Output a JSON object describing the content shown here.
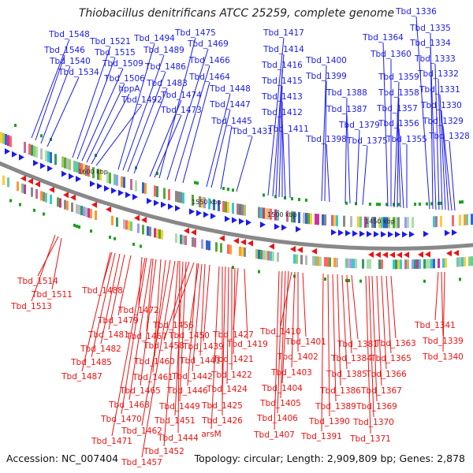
{
  "title": "Thiobacillus denitrificans ATCC 25259, complete genome",
  "footer": {
    "accession": "Accession: NC_007404",
    "summary": "Topology: circular; Length: 2,909,809 bp; Genes: 2,878"
  },
  "colors": {
    "forward": "#1a1aee",
    "reverse": "#ee1111",
    "backbone": "#888888",
    "gc_green": "#1aa31a"
  },
  "ticks": [
    "1600 kbp",
    "1550 kbp",
    "1500 kbp",
    "1450 kbp"
  ],
  "forward_genes": [
    {
      "name": "Tbd_1548",
      "ax": 40,
      "ay": 175
    },
    {
      "name": "Tbd_1546",
      "ax": 45,
      "ay": 178
    },
    {
      "name": "Tbd_1540",
      "ax": 52,
      "ay": 182
    },
    {
      "name": "Tbd_1534",
      "ax": 60,
      "ay": 186
    },
    {
      "name": "Tbd_1521",
      "ax": 92,
      "ay": 200
    },
    {
      "name": "Tbd_1515",
      "ax": 98,
      "ay": 202
    },
    {
      "name": "Tbd_1509",
      "ax": 104,
      "ay": 204
    },
    {
      "name": "Tbd_1506",
      "ax": 110,
      "ay": 206
    },
    {
      "name": "hppA",
      "ax": 116,
      "ay": 208
    },
    {
      "name": "Tbd_1492",
      "ax": 122,
      "ay": 210
    },
    {
      "name": "Tbd_1494",
      "ax": 150,
      "ay": 215
    },
    {
      "name": "Tbd_1489",
      "ax": 156,
      "ay": 216
    },
    {
      "name": "Tbd_1486",
      "ax": 162,
      "ay": 218
    },
    {
      "name": "Tbd_1483",
      "ax": 170,
      "ay": 220
    },
    {
      "name": "Tbd_1474",
      "ax": 190,
      "ay": 224
    },
    {
      "name": "Tbd_1473",
      "ax": 196,
      "ay": 225
    },
    {
      "name": "Tbd_1475",
      "ax": 202,
      "ay": 226
    },
    {
      "name": "Tbd_1469",
      "ax": 212,
      "ay": 228
    },
    {
      "name": "Tbd_1466",
      "ax": 222,
      "ay": 230
    },
    {
      "name": "Tbd_1464",
      "ax": 232,
      "ay": 232
    },
    {
      "name": "Tbd_1448",
      "ax": 262,
      "ay": 237
    },
    {
      "name": "Tbd_1447",
      "ax": 268,
      "ay": 238
    },
    {
      "name": "Tbd_1445",
      "ax": 280,
      "ay": 240
    },
    {
      "name": "Tbd_1431",
      "ax": 300,
      "ay": 243
    },
    {
      "name": "Tbd_1417",
      "ax": 340,
      "ay": 248
    },
    {
      "name": "Tbd_1414",
      "ax": 346,
      "ay": 249
    },
    {
      "name": "Tbd_1416",
      "ax": 350,
      "ay": 249
    },
    {
      "name": "Tbd_1415",
      "ax": 354,
      "ay": 250
    },
    {
      "name": "Tbd_1413",
      "ax": 358,
      "ay": 250
    },
    {
      "name": "Tbd_1412",
      "ax": 362,
      "ay": 251
    },
    {
      "name": "Tbd_1411",
      "ax": 368,
      "ay": 251
    },
    {
      "name": "Tbd_1400",
      "ax": 408,
      "ay": 255
    },
    {
      "name": "Tbd_1399",
      "ax": 412,
      "ay": 255
    },
    {
      "name": "Tbd_1398",
      "ax": 418,
      "ay": 256
    },
    {
      "name": "Tbd_1388",
      "ax": 438,
      "ay": 258
    },
    {
      "name": "Tbd_1387",
      "ax": 444,
      "ay": 258
    },
    {
      "name": "Tbd_1379",
      "ax": 452,
      "ay": 259
    },
    {
      "name": "Tbd_1375",
      "ax": 460,
      "ay": 260
    },
    {
      "name": "Tbd_1364",
      "ax": 492,
      "ay": 262
    },
    {
      "name": "Tbd_1360",
      "ax": 496,
      "ay": 262
    },
    {
      "name": "Tbd_1359",
      "ax": 500,
      "ay": 263
    },
    {
      "name": "Tbd_1358",
      "ax": 504,
      "ay": 263
    },
    {
      "name": "Tbd_1357",
      "ax": 508,
      "ay": 263
    },
    {
      "name": "Tbd_1356",
      "ax": 512,
      "ay": 264
    },
    {
      "name": "Tbd_1355",
      "ax": 516,
      "ay": 264
    },
    {
      "name": "Tbd_1336",
      "ax": 545,
      "ay": 265
    },
    {
      "name": "Tbd_1335",
      "ax": 549,
      "ay": 265
    },
    {
      "name": "Tbd_1334",
      "ax": 553,
      "ay": 266
    },
    {
      "name": "Tbd_1333",
      "ax": 557,
      "ay": 266
    },
    {
      "name": "Tbd_1332",
      "ax": 561,
      "ay": 266
    },
    {
      "name": "Tbd_1331",
      "ax": 565,
      "ay": 266
    },
    {
      "name": "Tbd_1330",
      "ax": 569,
      "ay": 267
    },
    {
      "name": "Tbd_1329",
      "ax": 573,
      "ay": 267
    },
    {
      "name": "Tbd_1328",
      "ax": 577,
      "ay": 267
    }
  ],
  "reverse_genes": [
    {
      "name": "Tbd_1514",
      "ax": 74,
      "ay": 300
    },
    {
      "name": "Tbd_1511",
      "ax": 78,
      "ay": 302
    },
    {
      "name": "Tbd_1513",
      "ax": 70,
      "ay": 298
    },
    {
      "name": "Tbd_1488",
      "ax": 142,
      "ay": 320
    },
    {
      "name": "Tbd_1472",
      "ax": 180,
      "ay": 326
    },
    {
      "name": "Tbd_1479",
      "ax": 166,
      "ay": 324
    },
    {
      "name": "Tbd_1481",
      "ax": 158,
      "ay": 323
    },
    {
      "name": "Tbd_1482",
      "ax": 152,
      "ay": 322
    },
    {
      "name": "Tbd_1485",
      "ax": 146,
      "ay": 321
    },
    {
      "name": "Tbd_1487",
      "ax": 140,
      "ay": 320
    },
    {
      "name": "Tbd_1467",
      "ax": 194,
      "ay": 328
    },
    {
      "name": "Tbd_1456",
      "ax": 246,
      "ay": 333
    },
    {
      "name": "Tbd_1458",
      "ax": 240,
      "ay": 332
    },
    {
      "name": "Tbd_1460",
      "ax": 210,
      "ay": 330
    },
    {
      "name": "Tbd_1461",
      "ax": 204,
      "ay": 329
    },
    {
      "name": "Tbd_1465",
      "ax": 198,
      "ay": 329
    },
    {
      "name": "Tbd_1468",
      "ax": 192,
      "ay": 328
    },
    {
      "name": "Tbd_1470",
      "ax": 186,
      "ay": 327
    },
    {
      "name": "Tbd_1471",
      "ax": 184,
      "ay": 327
    },
    {
      "name": "Tbd_1462",
      "ax": 216,
      "ay": 330
    },
    {
      "name": "Tbd_1457",
      "ax": 222,
      "ay": 331
    },
    {
      "name": "Tbd_1452",
      "ax": 226,
      "ay": 331
    },
    {
      "name": "Tbd_1450",
      "ax": 252,
      "ay": 334
    },
    {
      "name": "Tbd_1439",
      "ax": 266,
      "ay": 336
    },
    {
      "name": "Tbd_1441",
      "ax": 260,
      "ay": 335
    },
    {
      "name": "Tbd_1442",
      "ax": 256,
      "ay": 335
    },
    {
      "name": "Tbd_1446",
      "ax": 250,
      "ay": 334
    },
    {
      "name": "Tbd_1449",
      "ax": 236,
      "ay": 332
    },
    {
      "name": "Tbd_1451",
      "ax": 232,
      "ay": 332
    },
    {
      "name": "Tbd_1444",
      "ax": 228,
      "ay": 331
    },
    {
      "name": "Tbd_1427",
      "ax": 302,
      "ay": 340
    },
    {
      "name": "Tbd_1419",
      "ax": 310,
      "ay": 341
    },
    {
      "name": "Tbd_1421",
      "ax": 298,
      "ay": 340
    },
    {
      "name": "Tbd_1422",
      "ax": 294,
      "ay": 339
    },
    {
      "name": "Tbd_1424",
      "ax": 290,
      "ay": 339
    },
    {
      "name": "Tbd_1425",
      "ax": 286,
      "ay": 338
    },
    {
      "name": "Tbd_1426",
      "ax": 282,
      "ay": 338
    },
    {
      "name": "arsM",
      "ax": 278,
      "ay": 338
    },
    {
      "name": "Tbd_1410",
      "ax": 370,
      "ay": 345
    },
    {
      "name": "Tbd_1401",
      "ax": 384,
      "ay": 346
    },
    {
      "name": "Tbd_1402",
      "ax": 378,
      "ay": 345
    },
    {
      "name": "Tbd_1403",
      "ax": 374,
      "ay": 345
    },
    {
      "name": "Tbd_1404",
      "ax": 366,
      "ay": 344
    },
    {
      "name": "Tbd_1405",
      "ax": 362,
      "ay": 344
    },
    {
      "name": "Tbd_1406",
      "ax": 358,
      "ay": 344
    },
    {
      "name": "Tbd_1407",
      "ax": 354,
      "ay": 344
    },
    {
      "name": "Tbd_1381",
      "ax": 446,
      "ay": 349
    },
    {
      "name": "Tbd_1384",
      "ax": 440,
      "ay": 349
    },
    {
      "name": "Tbd_1385",
      "ax": 434,
      "ay": 349
    },
    {
      "name": "Tbd_1386",
      "ax": 428,
      "ay": 348
    },
    {
      "name": "Tbd_1389",
      "ax": 422,
      "ay": 348
    },
    {
      "name": "Tbd_1390",
      "ax": 416,
      "ay": 348
    },
    {
      "name": "Tbd_1391",
      "ax": 410,
      "ay": 347
    },
    {
      "name": "Tbd_1363",
      "ax": 496,
      "ay": 350
    },
    {
      "name": "Tbd_1365",
      "ax": 490,
      "ay": 350
    },
    {
      "name": "Tbd_1366",
      "ax": 484,
      "ay": 350
    },
    {
      "name": "Tbd_1367",
      "ax": 478,
      "ay": 350
    },
    {
      "name": "Tbd_1369",
      "ax": 472,
      "ay": 350
    },
    {
      "name": "Tbd_1370",
      "ax": 468,
      "ay": 350
    },
    {
      "name": "Tbd_1371",
      "ax": 464,
      "ay": 350
    },
    {
      "name": "Tbd_1341",
      "ax": 556,
      "ay": 345
    },
    {
      "name": "Tbd_1339",
      "ax": 560,
      "ay": 345
    },
    {
      "name": "Tbd_1340",
      "ax": 564,
      "ay": 345
    }
  ]
}
